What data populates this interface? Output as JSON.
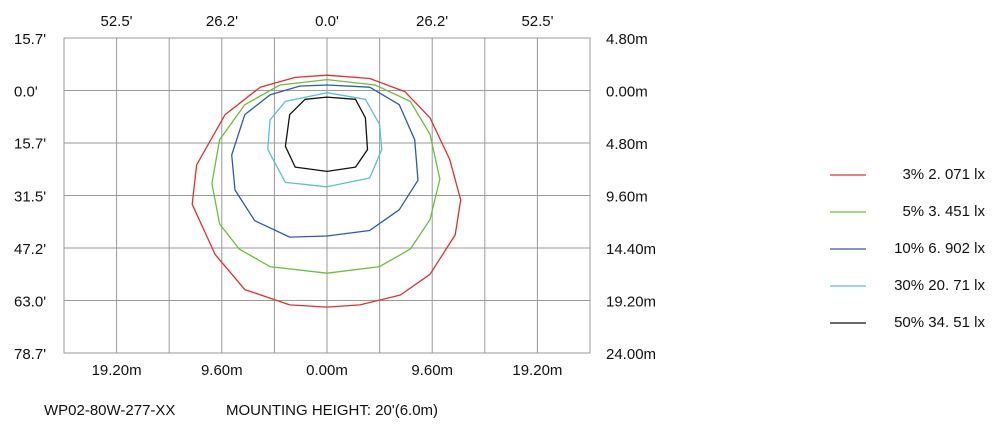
{
  "chart_data": {
    "type": "contour",
    "xlim": [
      -24,
      24
    ],
    "ylim": [
      24,
      -4.8
    ],
    "xticks": [
      {
        "value": -19.2,
        "label": "19.20m"
      },
      {
        "value": -9.6,
        "label": "9.60m"
      },
      {
        "value": 0,
        "label": "0.00m"
      },
      {
        "value": 9.6,
        "label": "9.60m"
      },
      {
        "value": 19.2,
        "label": "19.20m"
      }
    ],
    "yticks": [
      {
        "value": -4.8,
        "label": "4.80m"
      },
      {
        "value": 0,
        "label": "0.00m"
      },
      {
        "value": 4.8,
        "label": "4.80m"
      },
      {
        "value": 9.6,
        "label": "9.60m"
      },
      {
        "value": 14.4,
        "label": "14.40m"
      },
      {
        "value": 19.2,
        "label": "19.20m"
      },
      {
        "value": 24,
        "label": "24.00m"
      }
    ],
    "x2lim": [
      -65.6,
      65.6
    ],
    "x2ticks": [
      {
        "value": -52.5,
        "label": "52.5'"
      },
      {
        "value": -26.2,
        "label": "26.2'"
      },
      {
        "value": 0,
        "label": "0.0'"
      },
      {
        "value": 26.2,
        "label": "26.2'"
      },
      {
        "value": 52.5,
        "label": "52.5'"
      }
    ],
    "y2lim": [
      78.7,
      -15.7
    ],
    "y2ticks": [
      {
        "value": -15.7,
        "label": "15.7'"
      },
      {
        "value": 0,
        "label": "0.0'"
      },
      {
        "value": 15.7,
        "label": "15.7'"
      },
      {
        "value": 31.5,
        "label": "31.5'"
      },
      {
        "value": 47.2,
        "label": "47.2'"
      },
      {
        "value": 63.0,
        "label": "63.0'"
      },
      {
        "value": 78.7,
        "label": "78.7'"
      }
    ],
    "grid": true,
    "legend": "right",
    "series": [
      {
        "name": "3% 2. 071 lx",
        "color": "#e03030",
        "x": [
          0,
          3.9,
          7.1,
          9.4,
          11.2,
          12.2,
          11.7,
          9.4,
          6.7,
          3.0,
          0,
          -3.4,
          -7.5,
          -10.2,
          -12.3,
          -11.9,
          -9.3,
          -6.1,
          -2.9
        ],
        "y": [
          -1.4,
          -1.1,
          0.1,
          2.5,
          6.3,
          10.0,
          13.2,
          16.8,
          18.7,
          19.6,
          19.8,
          19.6,
          18.2,
          15.0,
          10.4,
          6.8,
          2.2,
          -0.3,
          -1.2
        ]
      },
      {
        "name": "5% 3. 451 lx",
        "color": "#6cbf3c",
        "x": [
          0,
          4.4,
          7.6,
          9.4,
          10.3,
          9.4,
          7.6,
          4.8,
          0,
          -5.2,
          -8.0,
          -9.8,
          -10.5,
          -9.8,
          -7.5,
          -4.3
        ],
        "y": [
          -1.0,
          -0.5,
          1.0,
          4.0,
          8.1,
          11.8,
          14.5,
          16.1,
          16.7,
          16.1,
          14.5,
          12.2,
          8.5,
          4.5,
          1.3,
          -0.5
        ]
      },
      {
        "name": "10% 6. 902 lx",
        "color": "#2c5ba8",
        "x": [
          0,
          3.9,
          6.6,
          8.0,
          8.3,
          6.6,
          3.9,
          0,
          -3.4,
          -6.6,
          -8.4,
          -8.7,
          -7.5,
          -5.2,
          -2.5
        ],
        "y": [
          -0.5,
          -0.3,
          1.3,
          4.5,
          8.2,
          10.9,
          12.8,
          13.3,
          13.4,
          11.9,
          9.1,
          5.9,
          2.2,
          0.4,
          -0.4
        ]
      },
      {
        "name": "30% 20. 71 lx",
        "color": "#5bbfd6",
        "x": [
          0,
          3.5,
          4.8,
          5.0,
          3.9,
          0,
          -3.8,
          -5.4,
          -5.2,
          -3.8
        ],
        "y": [
          0.2,
          0.8,
          3.1,
          5.4,
          8.0,
          8.8,
          8.4,
          5.4,
          2.7,
          1.0
        ]
      },
      {
        "name": "50% 34. 51 lx",
        "color": "#111111",
        "x": [
          0,
          2.6,
          3.5,
          3.7,
          2.6,
          0,
          -2.9,
          -3.8,
          -3.4,
          -2.0
        ],
        "y": [
          0.6,
          0.8,
          2.5,
          5.4,
          7.0,
          7.4,
          7.0,
          5.1,
          2.2,
          0.8
        ]
      }
    ],
    "notes": [
      "WP02-80W-277-XX",
      "MOUNTING HEIGHT: 20'(6.0m)"
    ]
  }
}
